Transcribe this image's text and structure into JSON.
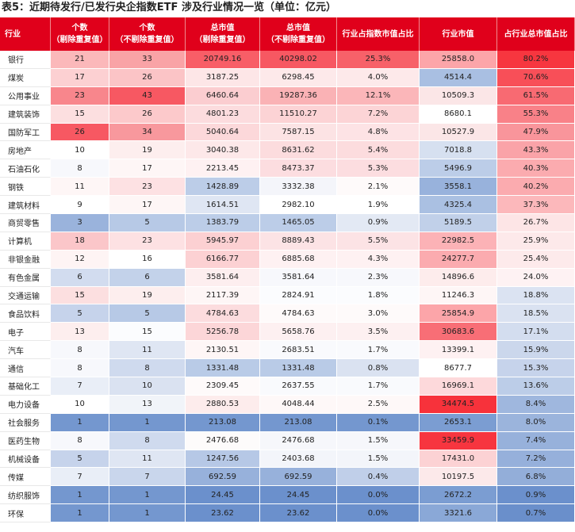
{
  "title": "表5：近期待发行/已发行央企指数ETF 涉及行业情况一览（单位：亿元）",
  "headers": [
    [
      "行业"
    ],
    [
      "个数",
      "（剔除重复值）"
    ],
    [
      "个数",
      "（不剔除重复值）"
    ],
    [
      "总市值",
      "（剔除重复值）"
    ],
    [
      "总市值",
      "（不剔除重复值）"
    ],
    [
      "行业占指数市值占比"
    ],
    [
      "行业市值"
    ],
    [
      "占行业总市值占比"
    ]
  ],
  "rows": [
    {
      "industry": "银行",
      "cnt_dedup": "21",
      "cnt_all": "33",
      "mv_dedup": "20749.16",
      "mv_all": "40298.02",
      "idx_share": "25.3%",
      "ind_mv": "25858.0",
      "ind_share": "80.2%",
      "colors": [
        "#fbb8ba",
        "#f9a3a6",
        "#f85e67",
        "#f75862",
        "#f76169",
        "#fca5a9",
        "#f7363f"
      ]
    },
    {
      "industry": "煤炭",
      "cnt_dedup": "17",
      "cnt_all": "26",
      "mv_dedup": "3187.25",
      "mv_all": "6298.45",
      "idx_share": "4.0%",
      "ind_mv": "4514.4",
      "ind_share": "70.6%",
      "colors": [
        "#fcd0d2",
        "#fbc4c6",
        "#fde6e7",
        "#fde9ea",
        "#fde9ea",
        "#a9bfe2",
        "#f84f58"
      ]
    },
    {
      "industry": "公用事业",
      "cnt_dedup": "23",
      "cnt_all": "43",
      "mv_dedup": "6460.64",
      "mv_all": "19287.36",
      "idx_share": "12.1%",
      "ind_mv": "10509.3",
      "ind_share": "61.5%",
      "colors": [
        "#f8868c",
        "#f75862",
        "#fbcdd0",
        "#fab2b5",
        "#fbb6b9",
        "#fbe6e7",
        "#f86a72"
      ]
    },
    {
      "industry": "建筑装饰",
      "cnt_dedup": "15",
      "cnt_all": "26",
      "mv_dedup": "4801.23",
      "mv_all": "11510.27",
      "idx_share": "7.2%",
      "ind_mv": "8680.1",
      "ind_share": "55.3%",
      "colors": [
        "#fcdfe0",
        "#fcc9cb",
        "#fcdcde",
        "#fcd3d5",
        "#fcd4d6",
        "#ffffff",
        "#f98188"
      ]
    },
    {
      "industry": "国防军工",
      "cnt_dedup": "26",
      "cnt_all": "34",
      "mv_dedup": "5040.64",
      "mv_all": "7587.15",
      "idx_share": "4.8%",
      "ind_mv": "10527.9",
      "ind_share": "47.9%",
      "colors": [
        "#f75862",
        "#f8989d",
        "#fcd8da",
        "#fce3e4",
        "#fde3e5",
        "#fbe6e7",
        "#f9959b"
      ]
    },
    {
      "industry": "房地产",
      "cnt_dedup": "10",
      "cnt_all": "19",
      "mv_dedup": "3040.38",
      "mv_all": "8631.62",
      "idx_share": "5.4%",
      "ind_mv": "7018.8",
      "ind_share": "43.3%",
      "colors": [
        "#ffffff",
        "#fdeeee",
        "#fde8e9",
        "#fcdcde",
        "#fcdcde",
        "#d6e0f0",
        "#faa3a8"
      ]
    },
    {
      "industry": "石油石化",
      "cnt_dedup": "8",
      "cnt_all": "17",
      "mv_dedup": "2213.45",
      "mv_all": "8473.37",
      "idx_share": "5.3%",
      "ind_mv": "5496.9",
      "ind_share": "40.3%",
      "colors": [
        "#f7f8fc",
        "#fef6f6",
        "#fef1f2",
        "#fcdde0",
        "#fcdde0",
        "#bccde8",
        "#fbabaf"
      ]
    },
    {
      "industry": "钢铁",
      "cnt_dedup": "11",
      "cnt_all": "23",
      "mv_dedup": "1428.89",
      "mv_all": "3332.38",
      "idx_share": "2.1%",
      "ind_mv": "3558.1",
      "ind_share": "40.2%",
      "colors": [
        "#fef6f6",
        "#fde1e3",
        "#bccde8",
        "#f4f5fa",
        "#fefafa",
        "#98b2dc",
        "#fbabaf"
      ]
    },
    {
      "industry": "建筑材料",
      "cnt_dedup": "9",
      "cnt_all": "17",
      "mv_dedup": "1614.51",
      "mv_all": "2982.10",
      "idx_share": "1.9%",
      "ind_mv": "4325.4",
      "ind_share": "37.3%",
      "colors": [
        "#ffffff",
        "#fef6f6",
        "#dfe6f3",
        "#ffffff",
        "#ffffff",
        "#aac0e2",
        "#fcb8bb"
      ]
    },
    {
      "industry": "商贸零售",
      "cnt_dedup": "3",
      "cnt_all": "5",
      "mv_dedup": "1383.79",
      "mv_all": "1465.05",
      "idx_share": "0.9%",
      "ind_mv": "5189.5",
      "ind_share": "26.7%",
      "colors": [
        "#9ab3dc",
        "#b7c9e6",
        "#bccde8",
        "#bccde8",
        "#e3e9f4",
        "#c1d0e9",
        "#fde5e6"
      ]
    },
    {
      "industry": "计算机",
      "cnt_dedup": "18",
      "cnt_all": "23",
      "mv_dedup": "5945.97",
      "mv_all": "8889.43",
      "idx_share": "5.5%",
      "ind_mv": "22982.5",
      "ind_share": "25.9%",
      "colors": [
        "#fbc6c9",
        "#fde1e3",
        "#fcd0d2",
        "#fce3e5",
        "#fce3e5",
        "#fcb2b6",
        "#fde9ea"
      ]
    },
    {
      "industry": "非银金融",
      "cnt_dedup": "12",
      "cnt_all": "16",
      "mv_dedup": "6166.77",
      "mv_all": "6885.68",
      "idx_share": "4.3%",
      "ind_mv": "24277.7",
      "ind_share": "25.4%",
      "colors": [
        "#fef4f4",
        "#ffffff",
        "#fcd1d3",
        "#fef1f2",
        "#fef1f2",
        "#fbabaf",
        "#fdeaeb"
      ]
    },
    {
      "industry": "有色金属",
      "cnt_dedup": "6",
      "cnt_all": "6",
      "mv_dedup": "3581.64",
      "mv_all": "3581.64",
      "idx_share": "2.3%",
      "ind_mv": "14896.6",
      "ind_share": "24.0%",
      "colors": [
        "#d2dcef",
        "#c3d2ea",
        "#fdeeef",
        "#f7f8fc",
        "#f7f8fc",
        "#fdecec",
        "#fef2f3"
      ]
    },
    {
      "industry": "交通运输",
      "cnt_dedup": "15",
      "cnt_all": "19",
      "mv_dedup": "2117.39",
      "mv_all": "2824.91",
      "idx_share": "1.8%",
      "ind_mv": "11246.3",
      "ind_share": "18.8%",
      "colors": [
        "#fcdfe0",
        "#fdeeee",
        "#fef6f6",
        "#fbfcfe",
        "#fbfcfe",
        "#fef6f6",
        "#dbe3f2"
      ]
    },
    {
      "industry": "食品饮料",
      "cnt_dedup": "5",
      "cnt_all": "5",
      "mv_dedup": "4784.63",
      "mv_all": "4784.63",
      "idx_share": "3.0%",
      "ind_mv": "25854.9",
      "ind_share": "18.5%",
      "colors": [
        "#c6d3eb",
        "#b7c9e6",
        "#fcdcde",
        "#fefafa",
        "#fefafa",
        "#fca5a9",
        "#dae2f1"
      ]
    },
    {
      "industry": "电子",
      "cnt_dedup": "13",
      "cnt_all": "15",
      "mv_dedup": "5256.78",
      "mv_all": "5658.76",
      "idx_share": "3.5%",
      "ind_mv": "30683.6",
      "ind_share": "17.1%",
      "colors": [
        "#fdeeee",
        "#fbfcfe",
        "#fcd6d8",
        "#fdf0f1",
        "#fdf0f1",
        "#f86e76",
        "#d3ddef"
      ]
    },
    {
      "industry": "汽车",
      "cnt_dedup": "8",
      "cnt_all": "11",
      "mv_dedup": "2130.51",
      "mv_all": "2683.51",
      "idx_share": "1.7%",
      "ind_mv": "13399.1",
      "ind_share": "15.9%",
      "colors": [
        "#f7f8fc",
        "#dfe6f3",
        "#fef6f6",
        "#f9fafd",
        "#f9fafd",
        "#fef1f2",
        "#cbd7ec"
      ]
    },
    {
      "industry": "通信",
      "cnt_dedup": "8",
      "cnt_all": "8",
      "mv_dedup": "1331.48",
      "mv_all": "1331.48",
      "idx_share": "0.8%",
      "ind_mv": "8677.7",
      "ind_share": "15.3%",
      "colors": [
        "#f7f8fc",
        "#cfdaee",
        "#b9cbe7",
        "#b9cbe7",
        "#dae2f1",
        "#ffffff",
        "#c6d3eb"
      ]
    },
    {
      "industry": "基础化工",
      "cnt_dedup": "7",
      "cnt_all": "10",
      "mv_dedup": "2309.45",
      "mv_all": "2637.55",
      "idx_share": "1.7%",
      "ind_mv": "16969.1",
      "ind_share": "13.6%",
      "colors": [
        "#e9eef7",
        "#dae2f1",
        "#fefafa",
        "#f9fafd",
        "#f9fafd",
        "#fdd9db",
        "#bccde8"
      ]
    },
    {
      "industry": "电力设备",
      "cnt_dedup": "10",
      "cnt_all": "13",
      "mv_dedup": "2880.53",
      "mv_all": "4048.44",
      "idx_share": "2.5%",
      "ind_mv": "34474.5",
      "ind_share": "8.4%",
      "colors": [
        "#ffffff",
        "#f1f4f9",
        "#fdecec",
        "#fef8f8",
        "#fef8f8",
        "#f7323b",
        "#9fb7de"
      ]
    },
    {
      "industry": "社会服务",
      "cnt_dedup": "1",
      "cnt_all": "1",
      "mv_dedup": "213.08",
      "mv_all": "213.08",
      "idx_share": "0.1%",
      "ind_mv": "2653.1",
      "ind_share": "8.0%",
      "colors": [
        "#7497cf",
        "#7497cf",
        "#7497cf",
        "#7497cf",
        "#7497cf",
        "#7b9dd2",
        "#9bb4dc"
      ]
    },
    {
      "industry": "医药生物",
      "cnt_dedup": "8",
      "cnt_all": "8",
      "mv_dedup": "2476.68",
      "mv_all": "2476.68",
      "idx_share": "1.5%",
      "ind_mv": "33459.9",
      "ind_share": "7.4%",
      "colors": [
        "#f7f8fc",
        "#cfdaee",
        "#fdfbfb",
        "#f6f7fb",
        "#f6f7fb",
        "#f7353f",
        "#97b1db"
      ]
    },
    {
      "industry": "机械设备",
      "cnt_dedup": "5",
      "cnt_all": "11",
      "mv_dedup": "1247.56",
      "mv_all": "2403.68",
      "idx_share": "1.5%",
      "ind_mv": "17431.0",
      "ind_share": "7.2%",
      "colors": [
        "#c6d3eb",
        "#dfe6f3",
        "#b6c8e6",
        "#f3f5fa",
        "#f3f5fa",
        "#fcd2d4",
        "#96b0db"
      ]
    },
    {
      "industry": "传媒",
      "cnt_dedup": "7",
      "cnt_all": "7",
      "mv_dedup": "692.59",
      "mv_all": "692.59",
      "idx_share": "0.4%",
      "ind_mv": "10197.5",
      "ind_share": "6.8%",
      "colors": [
        "#e9eef7",
        "#c9d6ec",
        "#97b1db",
        "#97b1db",
        "#c0cfe9",
        "#fce9ea",
        "#93aed9"
      ]
    },
    {
      "industry": "纺织服饰",
      "cnt_dedup": "1",
      "cnt_all": "1",
      "mv_dedup": "24.45",
      "mv_all": "24.45",
      "idx_share": "0.0%",
      "ind_mv": "2672.2",
      "ind_share": "0.9%",
      "colors": [
        "#7497cf",
        "#7497cf",
        "#6b90cc",
        "#6b90cc",
        "#6b90cc",
        "#7b9dd2",
        "#6b90cc"
      ]
    },
    {
      "industry": "环保",
      "cnt_dedup": "1",
      "cnt_all": "1",
      "mv_dedup": "23.62",
      "mv_all": "23.62",
      "idx_share": "0.0%",
      "ind_mv": "3321.6",
      "ind_share": "0.7%",
      "colors": [
        "#7497cf",
        "#7497cf",
        "#6b90cc",
        "#6b90cc",
        "#6b90cc",
        "#8aa8d7",
        "#6a8fcb"
      ]
    }
  ]
}
